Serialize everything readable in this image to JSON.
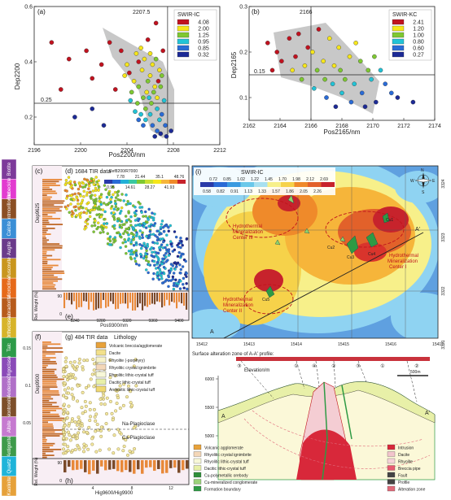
{
  "chart_data": [
    {
      "panel": "(a)",
      "type": "scatter",
      "xlabel": "Pos2200/nm",
      "ylabel": "Dep2200",
      "xlim": [
        2196,
        2212
      ],
      "ylim": [
        0.1,
        0.6
      ],
      "xticks": [
        "2196",
        "2200",
        "2204",
        "2208",
        "2212"
      ],
      "yticks": [
        "0.2",
        "0.4",
        "0.6"
      ],
      "ref_line_x": 2207.5,
      "ref_line_x_label": "2207.5",
      "ref_line_y": 0.25,
      "ref_line_y_label": "0.25",
      "legend_title": "SWIR-IC",
      "legend_values": [
        "4.08",
        "2.00",
        "1.25",
        "0.95",
        "0.85",
        "0.32"
      ],
      "legend_colors": [
        "#c1121f",
        "#f6e61b",
        "#7ec832",
        "#22c3d6",
        "#2a6bd6",
        "#1c2a96"
      ],
      "points": [
        {
          "x": 2197.5,
          "y": 0.47,
          "c": 0
        },
        {
          "x": 2199.0,
          "y": 0.41,
          "c": 0
        },
        {
          "x": 2200.5,
          "y": 0.44,
          "c": 0
        },
        {
          "x": 2201.0,
          "y": 0.34,
          "c": 0
        },
        {
          "x": 2202.5,
          "y": 0.47,
          "c": 0
        },
        {
          "x": 2203.5,
          "y": 0.44,
          "c": 0
        },
        {
          "x": 2205.8,
          "y": 0.48,
          "c": 0
        },
        {
          "x": 2206.5,
          "y": 0.54,
          "c": 0
        },
        {
          "x": 2205.0,
          "y": 0.4,
          "c": 0
        },
        {
          "x": 2204.2,
          "y": 0.36,
          "c": 0
        },
        {
          "x": 2203.0,
          "y": 0.3,
          "c": 0
        },
        {
          "x": 2206.7,
          "y": 0.33,
          "c": 0
        },
        {
          "x": 2207.1,
          "y": 0.44,
          "c": 0
        },
        {
          "x": 2198.3,
          "y": 0.3,
          "c": 0
        },
        {
          "x": 2201.8,
          "y": 0.39,
          "c": 0
        },
        {
          "x": 2204.8,
          "y": 0.43,
          "c": 1
        },
        {
          "x": 2205.5,
          "y": 0.41,
          "c": 1
        },
        {
          "x": 2206.2,
          "y": 0.39,
          "c": 1
        },
        {
          "x": 2205.3,
          "y": 0.37,
          "c": 1
        },
        {
          "x": 2206.0,
          "y": 0.35,
          "c": 1
        },
        {
          "x": 2204.6,
          "y": 0.33,
          "c": 1
        },
        {
          "x": 2206.4,
          "y": 0.31,
          "c": 1
        },
        {
          "x": 2205.7,
          "y": 0.29,
          "c": 1
        },
        {
          "x": 2206.8,
          "y": 0.37,
          "c": 1
        },
        {
          "x": 2204.0,
          "y": 0.39,
          "c": 1
        },
        {
          "x": 2206.6,
          "y": 0.27,
          "c": 1
        },
        {
          "x": 2205.2,
          "y": 0.45,
          "c": 1
        },
        {
          "x": 2206.0,
          "y": 0.43,
          "c": 1
        },
        {
          "x": 2203.8,
          "y": 0.35,
          "c": 1
        },
        {
          "x": 2205.0,
          "y": 0.31,
          "c": 2
        },
        {
          "x": 2205.8,
          "y": 0.33,
          "c": 2
        },
        {
          "x": 2206.3,
          "y": 0.29,
          "c": 2
        },
        {
          "x": 2204.4,
          "y": 0.29,
          "c": 2
        },
        {
          "x": 2205.4,
          "y": 0.27,
          "c": 2
        },
        {
          "x": 2206.9,
          "y": 0.31,
          "c": 2
        },
        {
          "x": 2204.9,
          "y": 0.25,
          "c": 2
        },
        {
          "x": 2206.1,
          "y": 0.25,
          "c": 2
        },
        {
          "x": 2205.6,
          "y": 0.23,
          "c": 2
        },
        {
          "x": 2207.0,
          "y": 0.35,
          "c": 2
        },
        {
          "x": 2206.5,
          "y": 0.41,
          "c": 2
        },
        {
          "x": 2205.2,
          "y": 0.21,
          "c": 3
        },
        {
          "x": 2206.0,
          "y": 0.21,
          "c": 3
        },
        {
          "x": 2206.6,
          "y": 0.23,
          "c": 3
        },
        {
          "x": 2205.6,
          "y": 0.19,
          "c": 3
        },
        {
          "x": 2204.7,
          "y": 0.22,
          "c": 3
        },
        {
          "x": 2207.2,
          "y": 0.26,
          "c": 3
        },
        {
          "x": 2206.8,
          "y": 0.19,
          "c": 3
        },
        {
          "x": 2205.9,
          "y": 0.27,
          "c": 3
        },
        {
          "x": 2204.3,
          "y": 0.26,
          "c": 3
        },
        {
          "x": 2206.2,
          "y": 0.17,
          "c": 4
        },
        {
          "x": 2205.4,
          "y": 0.17,
          "c": 4
        },
        {
          "x": 2207.0,
          "y": 0.21,
          "c": 4
        },
        {
          "x": 2206.6,
          "y": 0.15,
          "c": 4
        },
        {
          "x": 2205.0,
          "y": 0.19,
          "c": 4
        },
        {
          "x": 2207.3,
          "y": 0.17,
          "c": 4
        },
        {
          "x": 2206.9,
          "y": 0.14,
          "c": 5
        },
        {
          "x": 2207.4,
          "y": 0.13,
          "c": 5
        },
        {
          "x": 2206.4,
          "y": 0.13,
          "c": 5
        },
        {
          "x": 2207.8,
          "y": 0.15,
          "c": 5
        },
        {
          "x": 2201.0,
          "y": 0.23,
          "c": 5
        },
        {
          "x": 2199.5,
          "y": 0.2,
          "c": 5
        },
        {
          "x": 2202.0,
          "y": 0.17,
          "c": 5
        }
      ]
    },
    {
      "panel": "(b)",
      "type": "scatter",
      "xlabel": "Pos2165/nm",
      "ylabel": "Dep2165",
      "xlim": [
        2162,
        2174
      ],
      "ylim": [
        0.05,
        0.3
      ],
      "xticks": [
        "2162",
        "2164",
        "2166",
        "2168",
        "2170",
        "2172",
        "2174"
      ],
      "yticks": [
        "0.1",
        "0.2",
        "0.3"
      ],
      "ref_line_x": 2166,
      "ref_line_x_label": "2166",
      "ref_line_y": 0.15,
      "ref_line_y_label": "0.15",
      "legend_title": "SWIR-KC",
      "legend_values": [
        "2.41",
        "1.20",
        "1.00",
        "0.80",
        "0.60",
        "0.27"
      ],
      "legend_colors": [
        "#c1121f",
        "#f6e61b",
        "#7ec832",
        "#22c3d6",
        "#2a6bd6",
        "#1c2a96"
      ],
      "points": [
        {
          "x": 2163.2,
          "y": 0.22,
          "c": 0
        },
        {
          "x": 2163.8,
          "y": 0.2,
          "c": 0
        },
        {
          "x": 2164.6,
          "y": 0.23,
          "c": 0
        },
        {
          "x": 2165.2,
          "y": 0.24,
          "c": 0
        },
        {
          "x": 2164.1,
          "y": 0.18,
          "c": 0
        },
        {
          "x": 2165.8,
          "y": 0.21,
          "c": 0
        },
        {
          "x": 2163.5,
          "y": 0.16,
          "c": 0
        },
        {
          "x": 2166.5,
          "y": 0.25,
          "c": 0
        },
        {
          "x": 2165.0,
          "y": 0.19,
          "c": 0
        },
        {
          "x": 2167.2,
          "y": 0.23,
          "c": 1
        },
        {
          "x": 2166.1,
          "y": 0.2,
          "c": 1
        },
        {
          "x": 2167.8,
          "y": 0.21,
          "c": 1
        },
        {
          "x": 2166.8,
          "y": 0.18,
          "c": 1
        },
        {
          "x": 2168.5,
          "y": 0.19,
          "c": 1
        },
        {
          "x": 2165.6,
          "y": 0.17,
          "c": 1
        },
        {
          "x": 2167.5,
          "y": 0.17,
          "c": 1
        },
        {
          "x": 2168.9,
          "y": 0.22,
          "c": 1
        },
        {
          "x": 2164.8,
          "y": 0.16,
          "c": 1
        },
        {
          "x": 2166.4,
          "y": 0.16,
          "c": 2
        },
        {
          "x": 2167.9,
          "y": 0.16,
          "c": 2
        },
        {
          "x": 2169.2,
          "y": 0.18,
          "c": 2
        },
        {
          "x": 2168.2,
          "y": 0.14,
          "c": 2
        },
        {
          "x": 2166.9,
          "y": 0.14,
          "c": 2
        },
        {
          "x": 2169.7,
          "y": 0.16,
          "c": 2
        },
        {
          "x": 2165.4,
          "y": 0.14,
          "c": 2
        },
        {
          "x": 2170.1,
          "y": 0.19,
          "c": 2
        },
        {
          "x": 2167.4,
          "y": 0.13,
          "c": 3
        },
        {
          "x": 2168.8,
          "y": 0.13,
          "c": 3
        },
        {
          "x": 2169.9,
          "y": 0.14,
          "c": 3
        },
        {
          "x": 2166.2,
          "y": 0.12,
          "c": 3
        },
        {
          "x": 2170.5,
          "y": 0.16,
          "c": 3
        },
        {
          "x": 2168.0,
          "y": 0.11,
          "c": 3
        },
        {
          "x": 2169.3,
          "y": 0.11,
          "c": 4
        },
        {
          "x": 2170.8,
          "y": 0.13,
          "c": 4
        },
        {
          "x": 2167.0,
          "y": 0.1,
          "c": 4
        },
        {
          "x": 2171.2,
          "y": 0.11,
          "c": 4
        },
        {
          "x": 2168.6,
          "y": 0.09,
          "c": 4
        },
        {
          "x": 2170.2,
          "y": 0.09,
          "c": 5
        },
        {
          "x": 2171.6,
          "y": 0.1,
          "c": 5
        },
        {
          "x": 2172.6,
          "y": 0.09,
          "c": 5
        },
        {
          "x": 2169.5,
          "y": 0.08,
          "c": 5
        },
        {
          "x": 2167.6,
          "y": 0.08,
          "c": 5
        }
      ]
    },
    {
      "panel": "(c)",
      "type": "bar",
      "ylabel": "Dep9625"
    },
    {
      "panel": "(d)",
      "type": "scatter",
      "title": "1684 TIR data",
      "legend_title": "Ref8200/R7000",
      "legend_top_values": [
        "7.78",
        "21.44",
        "35.1",
        "48.76"
      ],
      "legend_bottom_values": [
        "0.95",
        "14.61",
        "28.27",
        "41.93"
      ],
      "point_count": 1684
    },
    {
      "panel": "(e)",
      "type": "bar",
      "ylabel": "Rel. Weight (%)",
      "xticks": [
        "9240",
        "9280",
        "9320",
        "9360",
        "9400"
      ],
      "xlabel": "Pos9300/nm",
      "yticks": [
        "90",
        "0"
      ]
    },
    {
      "panel": "(f)",
      "type": "bar",
      "ylabel": "Dep9900",
      "yticks": [
        "0.15",
        "0.1",
        "0.05"
      ]
    },
    {
      "panel": "(g)",
      "type": "scatter",
      "title": "484 TIR data",
      "point_count": 484
    },
    {
      "panel": "(h)",
      "type": "bar",
      "ylabel": "Rel. Weight (%)",
      "xticks": [
        "4",
        "8",
        "12"
      ],
      "xlabel": "Hig9600/Hig9900",
      "yticks": [
        "90",
        "0"
      ]
    },
    {
      "panel": "(i)",
      "type": "heatmap",
      "legend_title": "SWIR-IC",
      "legend_top_values": [
        "0.72",
        "0.85",
        "1.02",
        "1.22",
        "1.45",
        "1.70",
        "1.98",
        "2.12",
        "2.69"
      ],
      "legend_bottom_values": [
        "0.58",
        "0.82",
        "0.91",
        "1.13",
        "1.33",
        "1.57",
        "1.86",
        "2.05",
        "2.26"
      ],
      "xticks": [
        "15412",
        "15413",
        "15414",
        "15415",
        "15416",
        "15417"
      ],
      "yticks": [
        "3324",
        "3323",
        "3322",
        "3321"
      ],
      "centers": [
        "Hydrothermal Mineralization Center III",
        "Hydrothermal Mineralization Center I",
        "Hydrothermal Mineralization Center II"
      ],
      "ore_labels": [
        "Cu1",
        "Cu2",
        "Cu3",
        "Cu4",
        "Cu5"
      ],
      "profile_labels": [
        "A",
        "A'"
      ]
    }
  ],
  "headers": {
    "panel_c_header": "Lithology",
    "na_label": "Na-Plagioclase",
    "ca_label": "Ca-Plagioclase"
  },
  "mineral_strip": [
    {
      "label": "Biotite",
      "color": "#7d3a9a"
    },
    {
      "label": "Riebeckite",
      "color": "#e23bd0"
    },
    {
      "label": "Montmorillonite",
      "color": "#8b4f24"
    },
    {
      "label": "Calcite",
      "color": "#3b8fd6"
    },
    {
      "label": "Augite",
      "color": "#6a3a8a"
    },
    {
      "label": "Muscovite",
      "color": "#c9961e"
    },
    {
      "label": "Microcline",
      "color": "#e66a1a"
    },
    {
      "label": "Labradorite",
      "color": "#b75b1c"
    },
    {
      "label": "Orthoclase",
      "color": "#d7b42a"
    },
    {
      "label": "Talc",
      "color": "#2d9a48"
    },
    {
      "label": "Oligoclase",
      "color": "#8a4ab8"
    },
    {
      "label": "Andesine",
      "color": "#b070c8"
    },
    {
      "label": "Nontronite",
      "color": "#7d4f2a"
    },
    {
      "label": "Albite",
      "color": "#c67ad0"
    },
    {
      "label": "Antigorite",
      "color": "#3e9a4a"
    },
    {
      "label": "Quartz",
      "color": "#1fb4d9"
    },
    {
      "label": "Kaolinite",
      "color": "#e6a13a"
    }
  ],
  "lithology_legend": [
    {
      "label": "Volcanic breccia/agglomerate",
      "color": "#e8a23a"
    },
    {
      "label": "Dacite",
      "color": "#f2e08a"
    },
    {
      "label": "Rhyolite (-porphyry)",
      "color": "#f7f2c8"
    },
    {
      "label": "Rhyolitic crystal ignimbrite",
      "color": "#f4d7b8"
    },
    {
      "label": "Rhyolitic lithic-crystal tuff",
      "color": "#f8f8d8"
    },
    {
      "label": "Dacitic lithic-crystal tuff",
      "color": "#e8f0a8"
    },
    {
      "label": "Andesitic lithic-crystal tuff",
      "color": "#f0d870"
    }
  ],
  "map_footer": "Surface alteration zone of A-A' profile:",
  "section": {
    "elevation_label": "Elevation/m",
    "y_ticks": [
      "6000",
      "5500",
      "5000"
    ],
    "scale_label": "500m",
    "zone_numbers": [
      "③",
      "①",
      "④",
      "②",
      "③",
      "①",
      "②"
    ],
    "point_labels": [
      "A",
      "A'"
    ],
    "legend_left": [
      {
        "label": "Volcanic agglomerate",
        "color": "#e8a23a"
      },
      {
        "label": "Rhyolitic crystal ignimbrite",
        "color": "#f4d7b8"
      },
      {
        "label": "Rhyolitic lithic-crystal tuff",
        "color": "#f8f8d8"
      },
      {
        "label": "Dacitic lithic-crystal tuff",
        "color": "#e8f0a8"
      },
      {
        "label": "Cu-polymetallic orebody",
        "color": "#2f8f3a"
      },
      {
        "label": "Cu-mineralized conglomerate",
        "color": "#9bd27a"
      },
      {
        "label": "Formation boundary",
        "color": "#2e9a44"
      }
    ],
    "legend_right": [
      {
        "label": "Intrusion",
        "color": "#d8283a"
      },
      {
        "label": "Dacite",
        "color": "#f2c4cc"
      },
      {
        "label": "Rhyolite",
        "color": "#f6d3d8"
      },
      {
        "label": "Breccia pipe",
        "color": "#e85a70"
      },
      {
        "label": "Fault",
        "color": "#444444"
      },
      {
        "label": "Profile",
        "color": "#444444"
      },
      {
        "label": "Alteration zone",
        "color": "#e06a7a"
      }
    ]
  }
}
